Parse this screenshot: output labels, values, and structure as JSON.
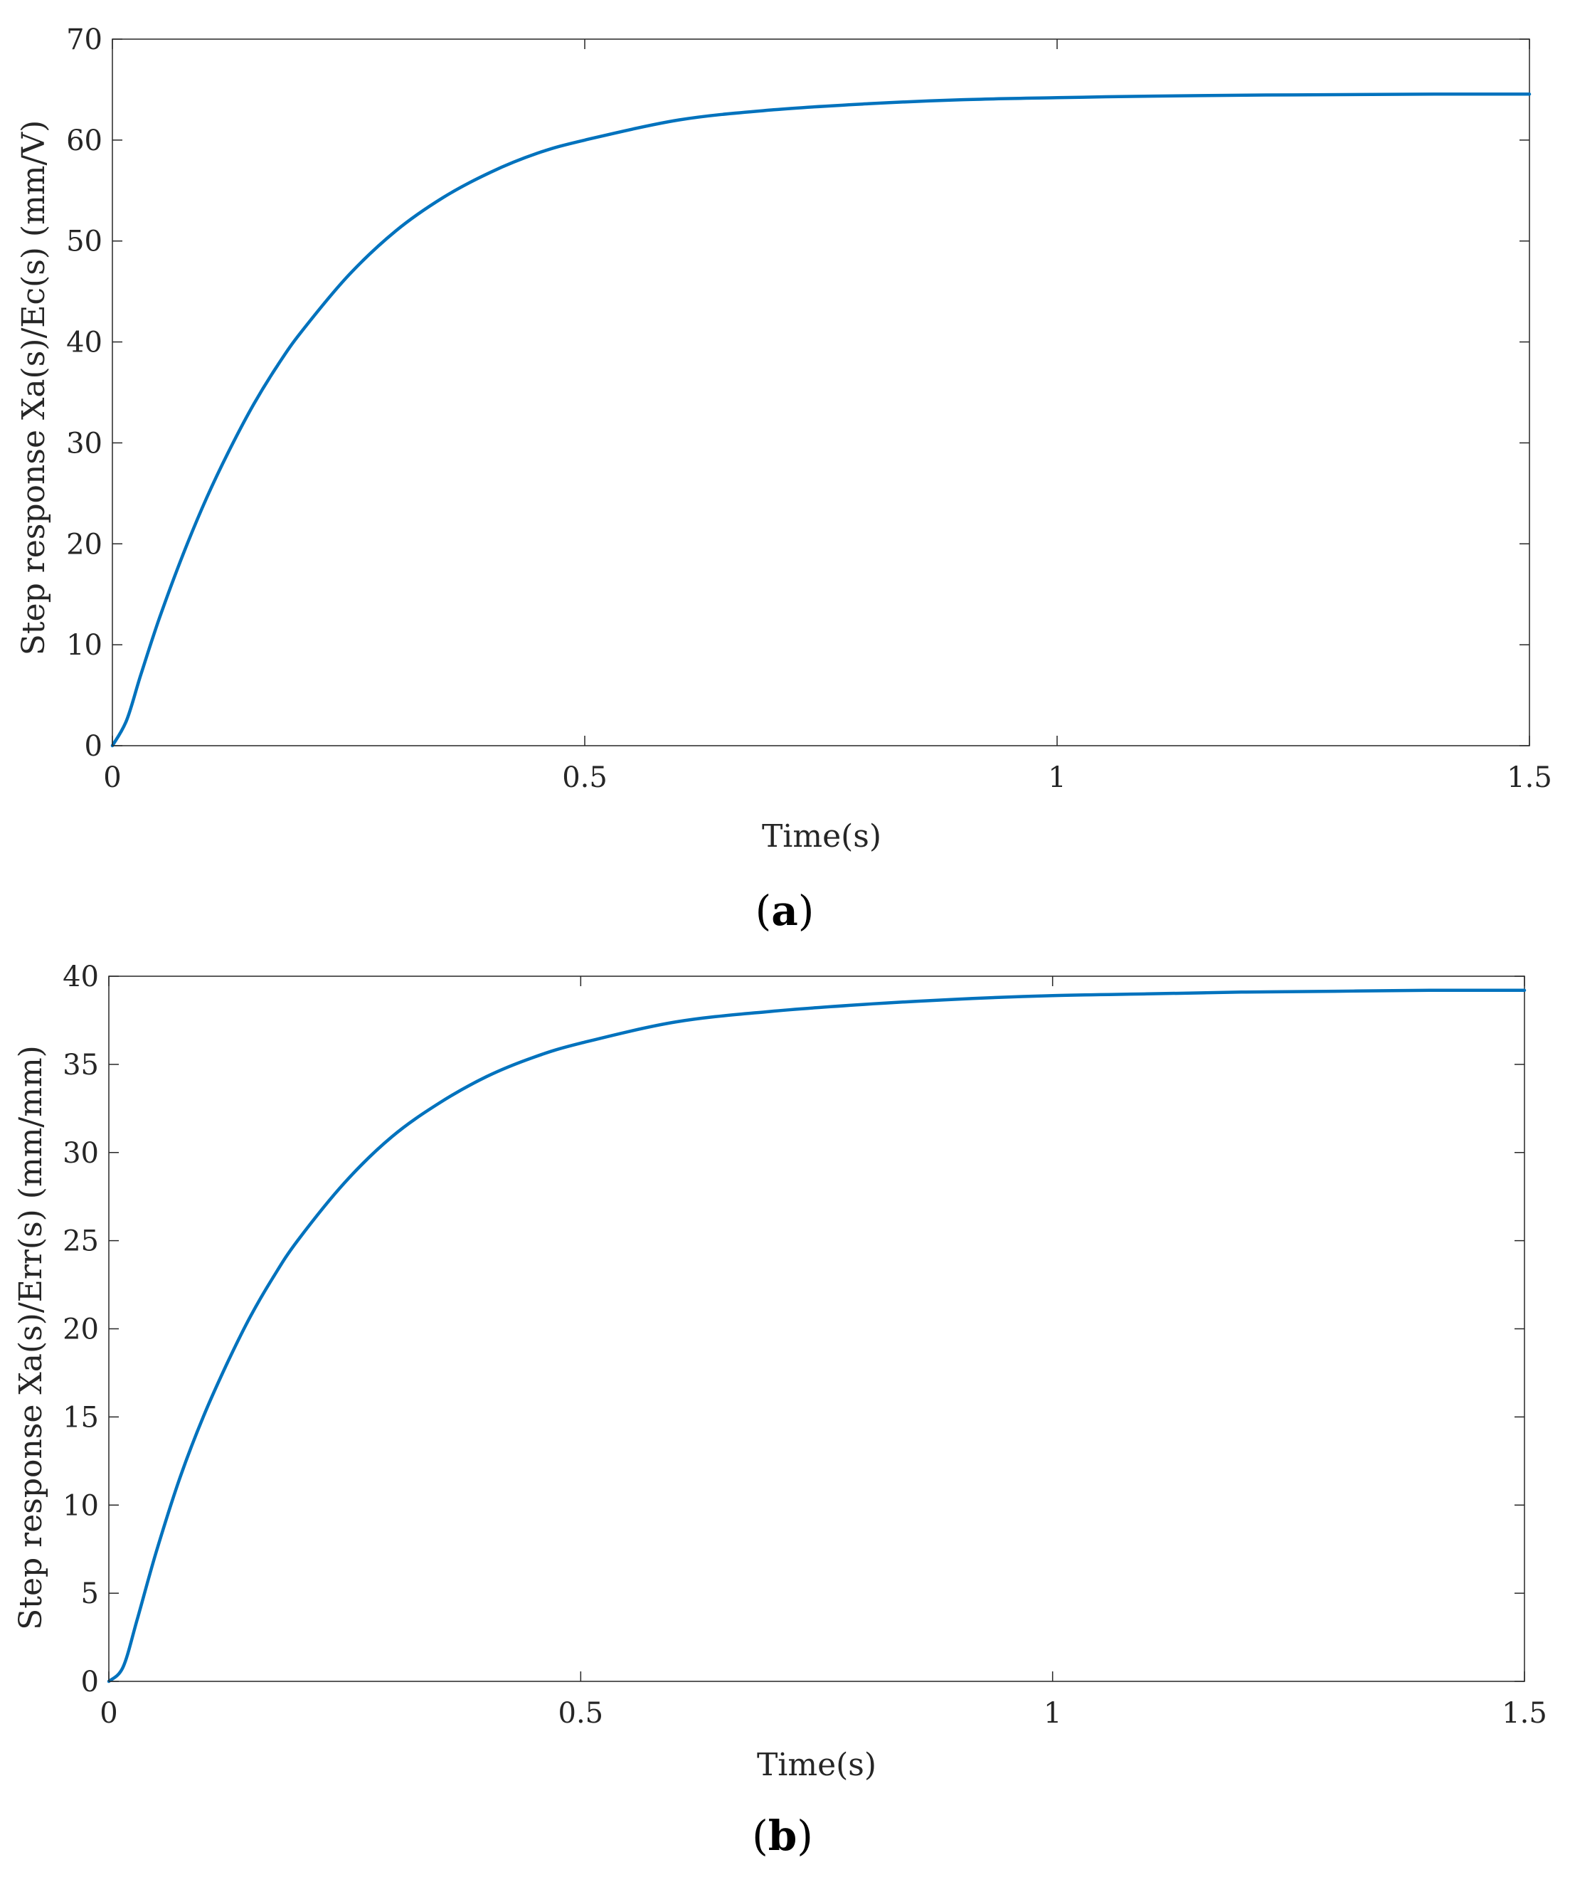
{
  "chart_data": [
    {
      "type": "line",
      "panel_label": "a",
      "xlabel": "Time(s)",
      "ylabel": "Step response Xa(s)/Ec(s) (mm/V)",
      "xlim": [
        0,
        1.5
      ],
      "ylim": [
        0,
        70
      ],
      "x_ticks": [
        "0",
        "0.5",
        "1",
        "1.5"
      ],
      "y_ticks": [
        "0",
        "10",
        "20",
        "30",
        "40",
        "50",
        "60",
        "70"
      ],
      "grid": false,
      "color": "#0072BD",
      "series": [
        {
          "x": [
            0,
            0.015,
            0.03,
            0.05,
            0.075,
            0.1,
            0.125,
            0.15,
            0.175,
            0.2,
            0.25,
            0.3,
            0.35,
            0.4,
            0.45,
            0.5,
            0.6,
            0.7,
            0.8,
            0.9,
            1.0,
            1.1,
            1.2,
            1.3,
            1.4,
            1.5
          ],
          "y": [
            0,
            2.5,
            7.0,
            12.7,
            19.0,
            24.6,
            29.5,
            33.9,
            37.7,
            41.0,
            46.6,
            51.0,
            54.3,
            56.8,
            58.7,
            60.0,
            62.0,
            63.0,
            63.6,
            64.0,
            64.2,
            64.35,
            64.45,
            64.5,
            64.55,
            64.55
          ]
        }
      ]
    },
    {
      "type": "line",
      "panel_label": "b",
      "xlabel": "Time(s)",
      "ylabel": "Step response Xa(s)/Err(s) (mm/mm)",
      "xlim": [
        0,
        1.5
      ],
      "ylim": [
        0,
        40
      ],
      "x_ticks": [
        "0",
        "0.5",
        "1",
        "1.5"
      ],
      "y_ticks": [
        "0",
        "5",
        "10",
        "15",
        "20",
        "25",
        "30",
        "35",
        "40"
      ],
      "grid": false,
      "color": "#0072BD",
      "series": [
        {
          "x": [
            0,
            0.015,
            0.03,
            0.05,
            0.075,
            0.1,
            0.125,
            0.15,
            0.175,
            0.2,
            0.25,
            0.3,
            0.35,
            0.4,
            0.45,
            0.5,
            0.6,
            0.7,
            0.8,
            0.9,
            1.0,
            1.1,
            1.2,
            1.3,
            1.4,
            1.5
          ],
          "y": [
            0,
            0.8,
            3.5,
            7.3,
            11.5,
            15.0,
            18.0,
            20.7,
            23.0,
            25.0,
            28.3,
            30.9,
            32.8,
            34.3,
            35.4,
            36.2,
            37.4,
            38.0,
            38.4,
            38.7,
            38.9,
            39.0,
            39.1,
            39.15,
            39.2,
            39.2
          ]
        }
      ]
    }
  ]
}
